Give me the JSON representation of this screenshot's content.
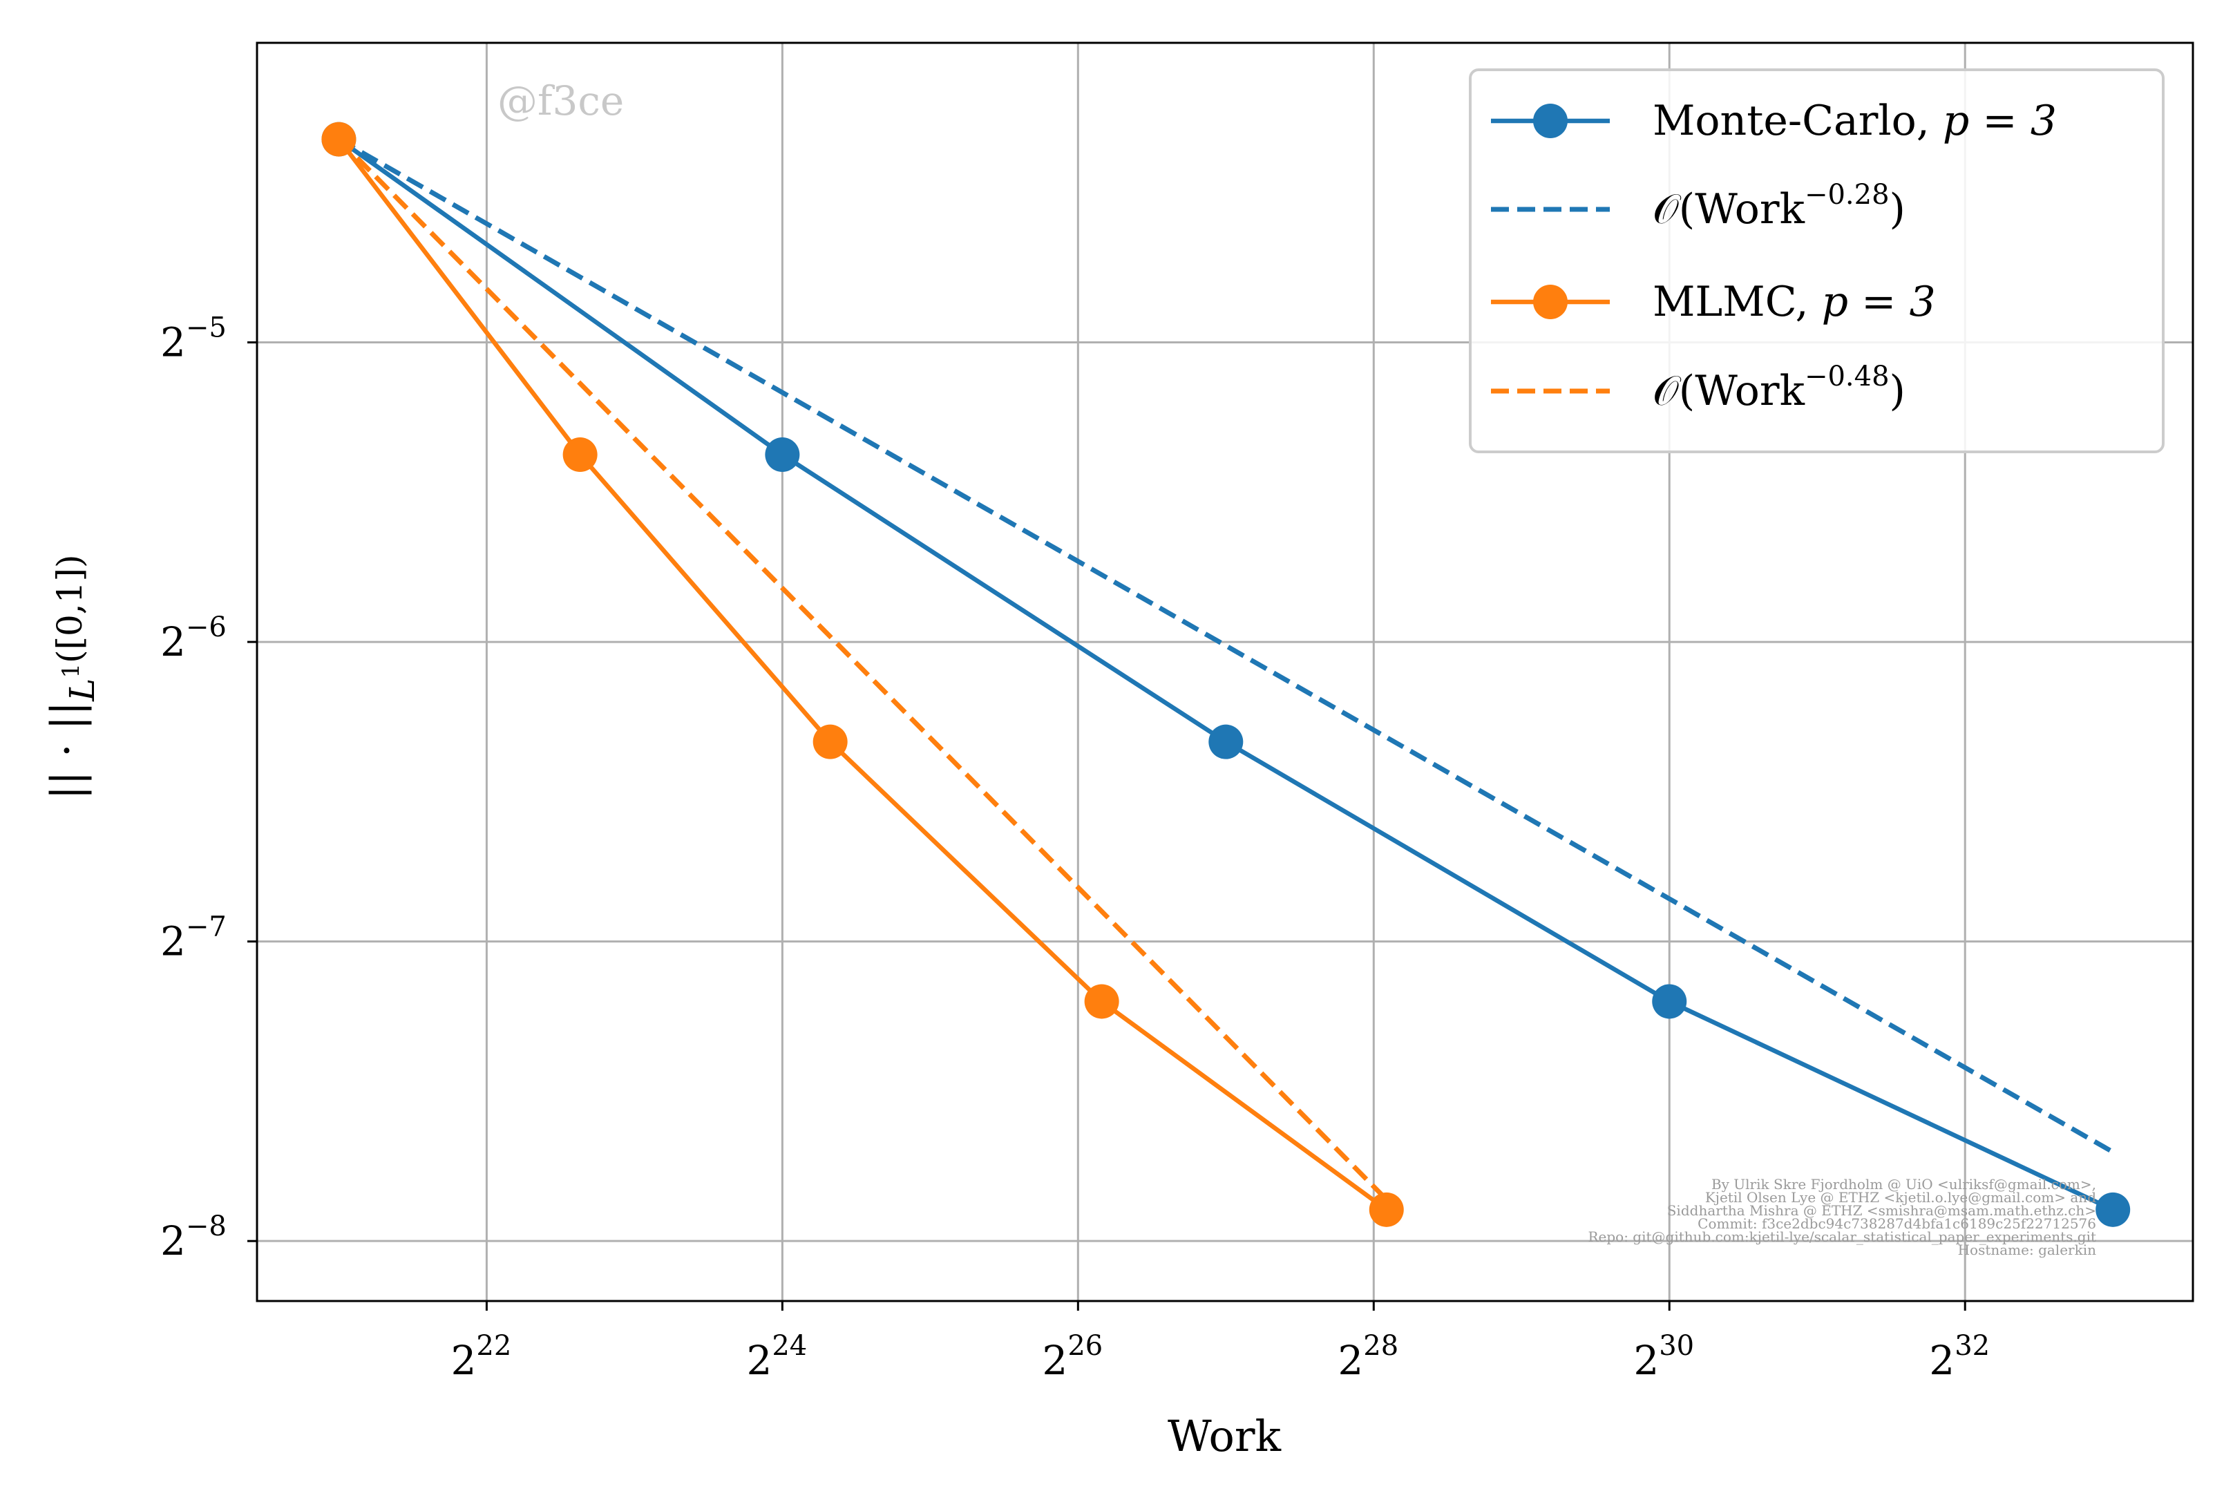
{
  "chart_data": {
    "type": "line",
    "xlabel": "Work",
    "ylabel": "|| · ||_{L^1([0,1])}",
    "x_scale": "log2",
    "y_scale": "log2",
    "xlim": [
      1429000,
      12500000000
    ],
    "ylim": [
      0.0034,
      0.0625
    ],
    "x_ticks": [
      {
        "value": 4194304,
        "base": "2",
        "exp": "22"
      },
      {
        "value": 16777216,
        "base": "2",
        "exp": "24"
      },
      {
        "value": 67108864,
        "base": "2",
        "exp": "26"
      },
      {
        "value": 268435456,
        "base": "2",
        "exp": "28"
      },
      {
        "value": 1073741824,
        "base": "2",
        "exp": "30"
      },
      {
        "value": 4294967296,
        "base": "2",
        "exp": "32"
      }
    ],
    "y_ticks": [
      {
        "value": 0.03125,
        "base": "2",
        "exp": "−5"
      },
      {
        "value": 0.015625,
        "base": "2",
        "exp": "−6"
      },
      {
        "value": 0.0078125,
        "base": "2",
        "exp": "−7"
      },
      {
        "value": 0.00390625,
        "base": "2",
        "exp": "−8"
      }
    ],
    "grid": true,
    "legend_position": "upper right",
    "series": [
      {
        "name": "Monte-Carlo, p = 3",
        "legend_main": "Monte-Carlo, ",
        "legend_math": "p = 3",
        "color": "#1f77b4",
        "style": "solid-markers",
        "x": [
          2097152,
          16777216,
          134217728,
          1073741824,
          8589934592
        ],
        "y": [
          0.05,
          0.0241,
          0.0124,
          0.0068,
          0.0042
        ]
      },
      {
        "name": "O(Work^-0.28)",
        "legend_main": "𝒪(Work",
        "legend_exp": "−0.28",
        "legend_close": ")",
        "color": "#1f77b4",
        "style": "dashed",
        "x": [
          2097152,
          8589934592
        ],
        "y": [
          0.05,
          0.0048
        ]
      },
      {
        "name": "MLMC, p = 3",
        "legend_main": "MLMC, ",
        "legend_math": "p = 3",
        "color": "#ff7f0e",
        "style": "solid-markers",
        "x": [
          2097152,
          6500000,
          21000000,
          75000000,
          285000000
        ],
        "y": [
          0.05,
          0.0241,
          0.0124,
          0.0068,
          0.0042
        ]
      },
      {
        "name": "O(Work^-0.48)",
        "legend_main": "𝒪(Work",
        "legend_exp": "−0.48",
        "legend_close": ")",
        "color": "#ff7f0e",
        "style": "dashed",
        "x": [
          2097152,
          285000000
        ],
        "y": [
          0.05,
          0.0043
        ]
      }
    ]
  },
  "watermark": "@f3ce",
  "credits": [
    "By Ulrik Skre Fjordholm @ UiO <ulriksf@gmail.com>,",
    "Kjetil Olsen Lye @ ETHZ <kjetil.o.lye@gmail.com> and",
    "Siddhartha Mishra @ ETHZ <smishra@msam.math.ethz.ch>",
    "Commit: f3ce2dbc94c738287d4bfa1c6189c25f22712576",
    "Repo: git@github.com:kjetil-lye/scalar_statistical_paper_experiments.git",
    "Hostname: galerkin"
  ]
}
